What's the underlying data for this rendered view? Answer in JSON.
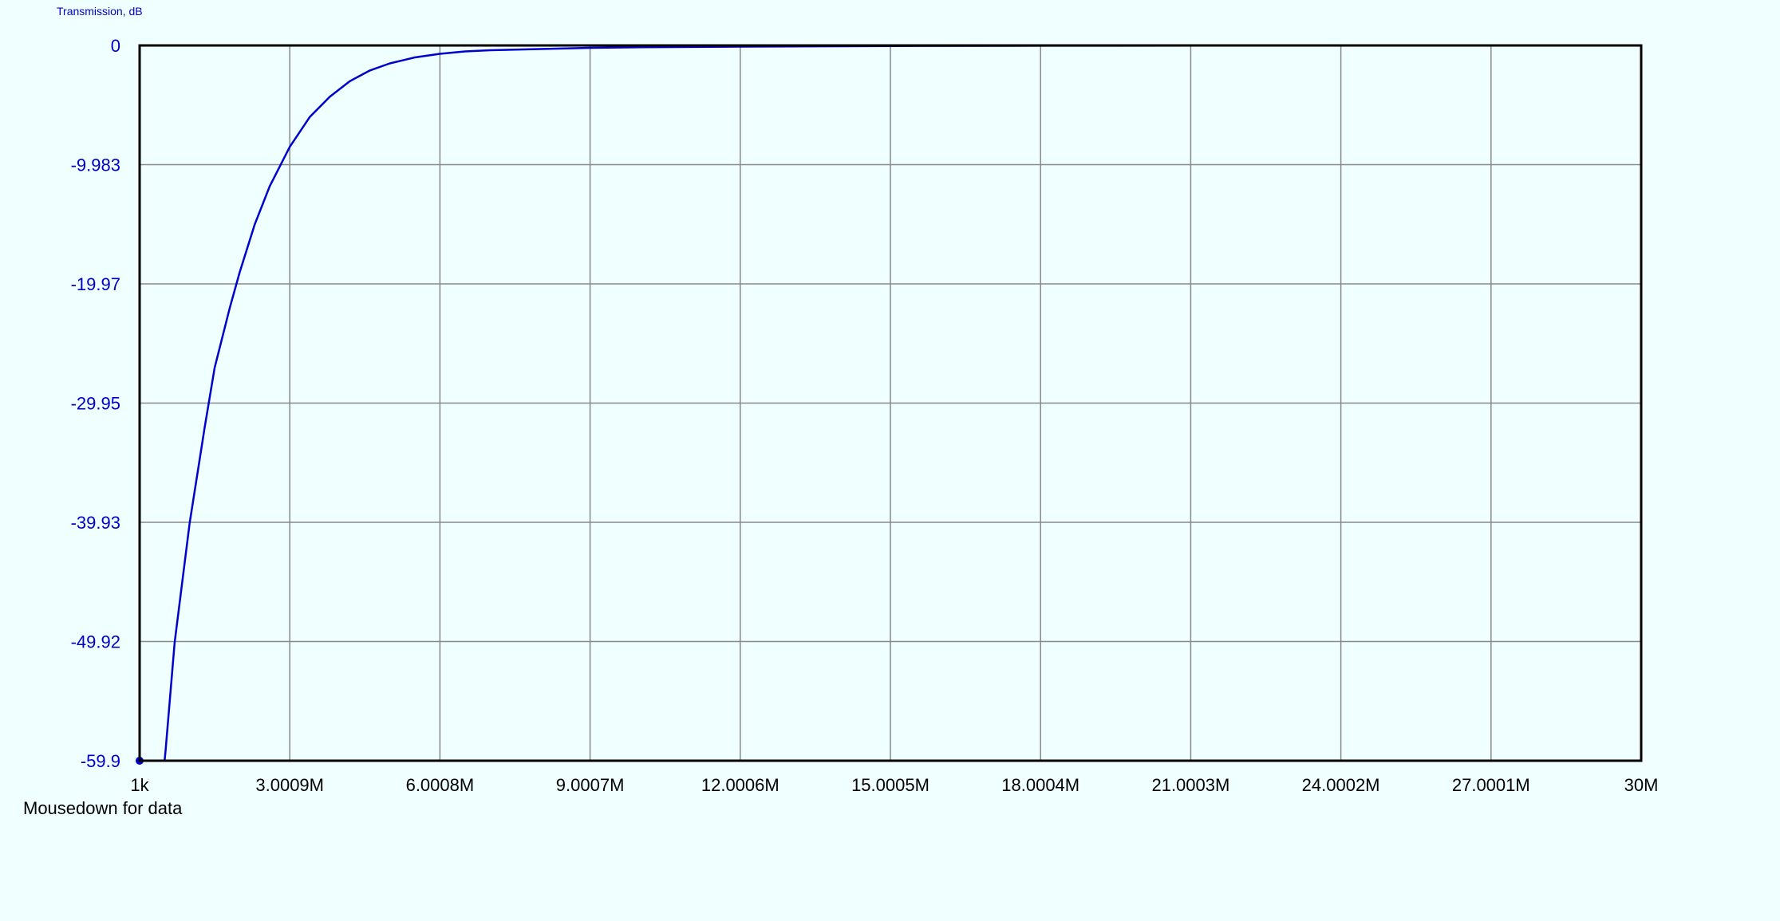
{
  "chart_data": {
    "type": "line",
    "title": "",
    "ylabel": "Transmission, dB",
    "xlabel": "",
    "xlim": [
      1000,
      30000000
    ],
    "ylim": [
      -59.9,
      0
    ],
    "grid": true,
    "x_tick_labels": [
      "1k",
      "3.0009M",
      "6.0008M",
      "9.0007M",
      "12.0006M",
      "15.0005M",
      "18.0004M",
      "21.0003M",
      "24.0002M",
      "27.0001M",
      "30M"
    ],
    "x_tick_values": [
      1000,
      3000900,
      6000800,
      9000700,
      12000600,
      15000500,
      18000400,
      21000300,
      24000200,
      27000100,
      30000000
    ],
    "y_tick_labels": [
      "0",
      "-9.983",
      "-19.97",
      "-29.95",
      "-39.93",
      "-49.92",
      "-59.9"
    ],
    "y_tick_values": [
      0,
      -9.983,
      -19.97,
      -29.95,
      -39.93,
      -49.92,
      -59.9
    ],
    "series": [
      {
        "color": "#0000cc",
        "x": [
          1000,
          500000,
          520000,
          700000,
          1000000,
          1300000,
          1500000,
          1800000,
          2000000,
          2300000,
          2600000,
          3000000,
          3400000,
          3800000,
          4200000,
          4600000,
          5000000,
          5500000,
          6000000,
          6500000,
          7000000,
          8000000,
          9000000,
          10000000,
          12000000,
          15000000,
          18000000,
          21000000,
          24000000,
          27000000,
          30000000
        ],
        "y": [
          -59.9,
          -59.9,
          -59.0,
          -50.0,
          -40.0,
          -32.0,
          -27.0,
          -22.0,
          -19.0,
          -15.0,
          -11.8,
          -8.5,
          -6.0,
          -4.3,
          -3.0,
          -2.1,
          -1.5,
          -1.0,
          -0.7,
          -0.5,
          -0.4,
          -0.3,
          -0.2,
          -0.15,
          -0.1,
          -0.05,
          -0.03,
          -0.02,
          -0.01,
          -0.005,
          0
        ]
      }
    ]
  },
  "hint_text": "Mousedown for data"
}
